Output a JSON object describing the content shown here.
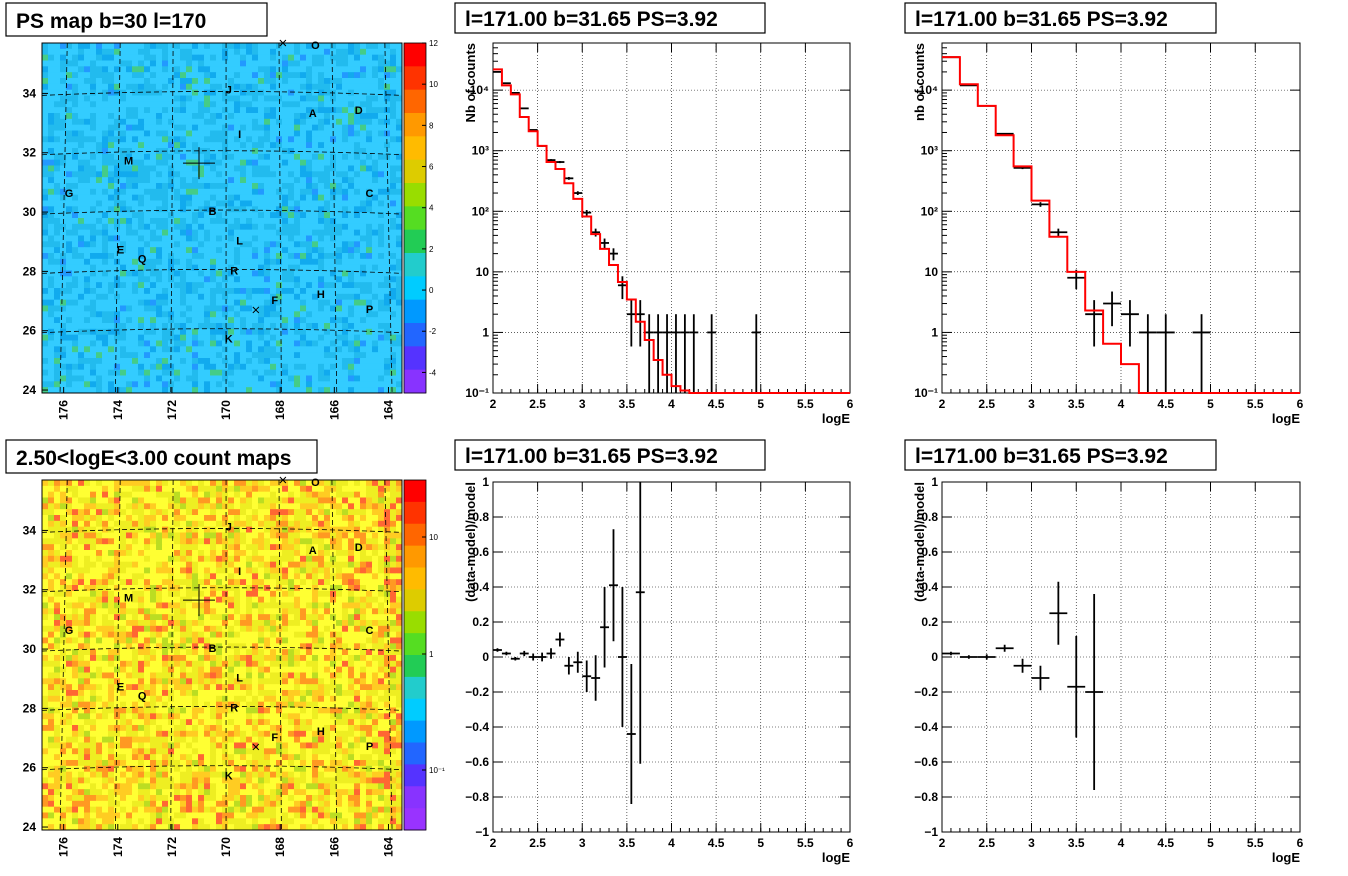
{
  "panels": {
    "map_ps": {
      "title": "PS map b=30 l=170"
    },
    "map_counts": {
      "title": "2.50<logE<3.00 count maps"
    },
    "spec_left": {
      "title": "l=171.00 b=31.65 PS=3.92"
    },
    "spec_right": {
      "title": "l=171.00 b=31.65 PS=3.92"
    },
    "res_left": {
      "title": "l=171.00 b=31.65 PS=3.92"
    },
    "res_right": {
      "title": "l=171.00 b=31.65 PS=3.92"
    }
  },
  "map_axes": {
    "l_ticks": [
      "176",
      "174",
      "172",
      "170",
      "168",
      "166",
      "164"
    ],
    "b_ticks": [
      "34",
      "32",
      "30",
      "28",
      "26",
      "24"
    ],
    "l_range": [
      176.8,
      163.5
    ],
    "b_range": [
      23.9,
      35.7
    ]
  },
  "map_sources": [
    {
      "name": "O",
      "l": 166.7,
      "b": 35.5
    },
    {
      "name": "J",
      "l": 169.9,
      "b": 34.0
    },
    {
      "name": "A",
      "l": 166.8,
      "b": 33.2
    },
    {
      "name": "D",
      "l": 165.1,
      "b": 33.3
    },
    {
      "name": "I",
      "l": 169.5,
      "b": 32.5
    },
    {
      "name": "M",
      "l": 173.6,
      "b": 31.6
    },
    {
      "name": "G",
      "l": 175.8,
      "b": 30.5
    },
    {
      "name": "C",
      "l": 164.7,
      "b": 30.5
    },
    {
      "name": "B",
      "l": 170.5,
      "b": 29.9
    },
    {
      "name": "L",
      "l": 169.5,
      "b": 28.9
    },
    {
      "name": "E",
      "l": 173.9,
      "b": 28.6
    },
    {
      "name": "Q",
      "l": 173.1,
      "b": 28.3
    },
    {
      "name": "R",
      "l": 169.7,
      "b": 27.9
    },
    {
      "name": "F",
      "l": 168.2,
      "b": 26.9
    },
    {
      "name": "H",
      "l": 166.5,
      "b": 27.1
    },
    {
      "name": "P",
      "l": 164.7,
      "b": 26.6
    },
    {
      "name": "K",
      "l": 169.9,
      "b": 25.6
    }
  ],
  "map_markers": {
    "cross": {
      "l": 171.0,
      "b": 31.65
    },
    "x_top": {
      "l": 167.9,
      "b": 35.7
    },
    "x_mid": {
      "l": 168.9,
      "b": 26.7
    }
  },
  "palette_ps": {
    "ticks": [
      "12",
      "10",
      "8",
      "6",
      "4",
      "2",
      "0",
      "-2",
      "-4"
    ],
    "range": [
      -5,
      12
    ]
  },
  "palette_counts": {
    "ticks": [
      "10",
      "1",
      "10⁻¹"
    ]
  },
  "chart_data": [
    {
      "type": "line",
      "title": "l=171.00 b=31.65 PS=3.92",
      "xlabel": "logE",
      "ylabel": "Nb of counts",
      "xlim": [
        2,
        6
      ],
      "ylim": [
        0.1,
        60000
      ],
      "yscale": "log",
      "xticks": [
        "2",
        "2.5",
        "3",
        "3.5",
        "4",
        "4.5",
        "5",
        "5.5",
        "6"
      ],
      "yticks": [
        "10⁴",
        "10³",
        "10²",
        "10",
        "1",
        "10⁻¹"
      ],
      "grid": true,
      "series": [
        {
          "kind": "data_points",
          "x": [
            2.05,
            2.15,
            2.25,
            2.35,
            2.45,
            2.55,
            2.65,
            2.75,
            2.85,
            2.95,
            3.05,
            3.15,
            3.25,
            3.35,
            3.45,
            3.55,
            3.65,
            3.75,
            3.85,
            3.95,
            4.05,
            4.15,
            4.25,
            4.45,
            4.95
          ],
          "y": [
            20000,
            13000,
            9000,
            5000,
            2200,
            1200,
            700,
            650,
            350,
            200,
            95,
            45,
            30,
            20,
            6,
            2,
            2,
            1,
            1,
            1,
            1,
            1,
            1,
            1,
            1
          ],
          "xerr": 0.05
        },
        {
          "kind": "model_step",
          "color": "#ff0000",
          "x_edges": [
            2.0,
            2.1,
            2.2,
            2.3,
            2.4,
            2.5,
            2.6,
            2.7,
            2.8,
            2.9,
            3.0,
            3.1,
            3.2,
            3.3,
            3.4,
            3.5,
            3.6,
            3.7,
            3.8,
            3.9,
            4.0,
            4.1,
            4.2,
            4.3,
            6.0
          ],
          "y": [
            22000,
            12000,
            8500,
            3600,
            2100,
            1200,
            650,
            500,
            290,
            160,
            82,
            42,
            24,
            13,
            6.8,
            3.5,
            1.5,
            0.75,
            0.35,
            0.2,
            0.13,
            0.11,
            0.1,
            0.1
          ]
        }
      ]
    },
    {
      "type": "line",
      "title": "l=171.00 b=31.65 PS=3.92",
      "xlabel": "logE",
      "ylabel": "nb of counts",
      "xlim": [
        2,
        6
      ],
      "ylim": [
        0.1,
        60000
      ],
      "yscale": "log",
      "xticks": [
        "2",
        "2.5",
        "3",
        "3.5",
        "4",
        "4.5",
        "5",
        "5.5",
        "6"
      ],
      "yticks": [
        "10⁴",
        "10³",
        "10²",
        "10",
        "1",
        "10⁻¹"
      ],
      "grid": true,
      "series": [
        {
          "kind": "data_points",
          "x": [
            2.1,
            2.3,
            2.5,
            2.7,
            2.9,
            3.1,
            3.3,
            3.5,
            3.7,
            3.9,
            4.1,
            4.3,
            4.5,
            4.9
          ],
          "y": [
            35000,
            12000,
            5500,
            1900,
            520,
            130,
            45,
            8,
            2,
            3,
            2,
            1,
            1,
            1
          ],
          "xerr": 0.1
        },
        {
          "kind": "model_step",
          "color": "#ff0000",
          "x_edges": [
            2.0,
            2.2,
            2.4,
            2.6,
            2.8,
            3.0,
            3.2,
            3.4,
            3.6,
            3.8,
            4.0,
            4.2,
            4.4,
            6.0
          ],
          "y": [
            35000,
            12500,
            5500,
            1800,
            550,
            150,
            38,
            10,
            2.3,
            0.65,
            0.3,
            0.1,
            0.1
          ]
        }
      ]
    },
    {
      "type": "scatter",
      "title": "l=171.00 b=31.65 PS=3.92",
      "xlabel": "logE",
      "ylabel": "(data-model)/model",
      "xlim": [
        2,
        6
      ],
      "ylim": [
        -1,
        1
      ],
      "xticks": [
        "2",
        "2.5",
        "3",
        "3.5",
        "4",
        "4.5",
        "5",
        "5.5",
        "6"
      ],
      "yticks": [
        "1",
        "0.8",
        "0.6",
        "0.4",
        "0.2",
        "0",
        "−0.2",
        "−0.4",
        "−0.6",
        "−0.8",
        "−1"
      ],
      "grid": true,
      "series": [
        {
          "kind": "residuals",
          "x": [
            2.05,
            2.15,
            2.25,
            2.35,
            2.45,
            2.55,
            2.65,
            2.75,
            2.85,
            2.95,
            3.05,
            3.15,
            3.25,
            3.35,
            3.45,
            3.55,
            3.65
          ],
          "y": [
            0.04,
            0.02,
            -0.01,
            0.02,
            0.0,
            0.0,
            0.02,
            0.1,
            -0.05,
            -0.03,
            -0.11,
            -0.12,
            0.17,
            0.41,
            -0.0,
            -0.44,
            0.37
          ],
          "yerr": [
            0.01,
            0.01,
            0.01,
            0.015,
            0.02,
            0.025,
            0.03,
            0.04,
            0.05,
            0.06,
            0.09,
            0.13,
            0.23,
            0.32,
            0.4,
            0.4,
            0.98
          ],
          "xerr": 0.05
        }
      ]
    },
    {
      "type": "scatter",
      "title": "l=171.00 b=31.65 PS=3.92",
      "xlabel": "logE",
      "ylabel": "(data-model)/model",
      "xlim": [
        2,
        6
      ],
      "ylim": [
        -1,
        1
      ],
      "xticks": [
        "2",
        "2.5",
        "3",
        "3.5",
        "4",
        "4.5",
        "5",
        "5.5",
        "6"
      ],
      "yticks": [
        "1",
        "0.8",
        "0.6",
        "0.4",
        "0.2",
        "0",
        "−0.2",
        "−0.4",
        "−0.6",
        "−0.8",
        "−1"
      ],
      "grid": true,
      "series": [
        {
          "kind": "residuals",
          "x": [
            2.1,
            2.3,
            2.5,
            2.7,
            2.9,
            3.1,
            3.3,
            3.5,
            3.7
          ],
          "y": [
            0.02,
            0.0,
            0.0,
            0.05,
            -0.05,
            -0.12,
            0.25,
            -0.17,
            -0.2
          ],
          "yerr": [
            0.01,
            0.01,
            0.015,
            0.02,
            0.04,
            0.07,
            0.18,
            0.29,
            0.56
          ],
          "xerr": 0.1
        }
      ]
    }
  ]
}
